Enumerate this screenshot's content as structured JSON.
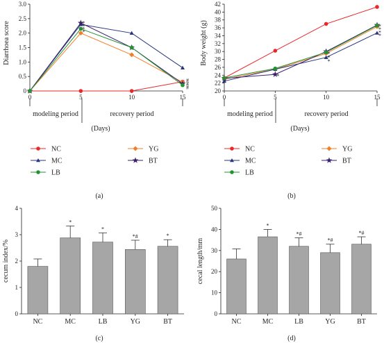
{
  "panels": {
    "a": {
      "tag": "(a)",
      "period_modeling": "modeling period",
      "period_recovery": "recovery period",
      "days": "(Days)"
    },
    "b": {
      "tag": "(b)",
      "period_modeling": "modeling period",
      "period_recovery": "recovery period",
      "days": "(Days)"
    },
    "c": {
      "tag": "(c)"
    },
    "d": {
      "tag": "(d)"
    }
  },
  "colors": {
    "NC": "#e8282b",
    "YG": "#f07f2a",
    "MC": "#26357e",
    "BT": "#3a1f6e",
    "LB": "#239233",
    "bar": "#a6a6a6"
  },
  "chart_data": [
    {
      "id": "a",
      "type": "line",
      "ylabel": "Diarrhoea score",
      "x": [
        0,
        5,
        10,
        15
      ],
      "ylim": [
        0,
        3
      ],
      "xlim": [
        0,
        15
      ],
      "yticks": [
        "0",
        "0.5",
        "1.0",
        "1.5",
        "2.0",
        "2.5",
        "3.0"
      ],
      "xticks": [
        "0",
        "5",
        "10",
        "15"
      ],
      "series": [
        {
          "name": "NC",
          "marker": "circle",
          "values": [
            0,
            0,
            0,
            0.32
          ]
        },
        {
          "name": "YG",
          "marker": "diamond",
          "values": [
            0,
            2.0,
            1.25,
            0.3
          ]
        },
        {
          "name": "MC",
          "marker": "triangle",
          "values": [
            0,
            2.3,
            2.0,
            0.8
          ]
        },
        {
          "name": "BT",
          "marker": "star",
          "values": [
            0,
            2.35,
            1.5,
            0.25
          ]
        },
        {
          "name": "LB",
          "marker": "circle",
          "values": [
            0,
            2.15,
            1.5,
            0.2
          ]
        }
      ],
      "annotations": [
        {
          "text": "*",
          "x": 5,
          "y": 2.35
        },
        {
          "text": "*",
          "x": 5,
          "y": 2.25
        },
        {
          "text": "*",
          "x": 5,
          "y": 2.15
        },
        {
          "text": "*",
          "x": 5,
          "y": 2.05
        },
        {
          "text": "#",
          "x": 15,
          "y": 0.37
        },
        {
          "text": "#",
          "x": 15,
          "y": 0.25
        },
        {
          "text": "#",
          "x": 15,
          "y": 0.13
        }
      ]
    },
    {
      "id": "b",
      "type": "line",
      "ylabel": "Body weight (g)",
      "x": [
        0,
        5,
        10,
        15
      ],
      "ylim": [
        20,
        42
      ],
      "xlim": [
        0,
        15
      ],
      "yticks": [
        "20",
        "22",
        "24",
        "26",
        "28",
        "30",
        "32",
        "34",
        "36",
        "38",
        "40",
        "42"
      ],
      "xticks": [
        "0",
        "5",
        "10",
        "15"
      ],
      "series": [
        {
          "name": "NC",
          "marker": "circle",
          "values": [
            23.3,
            30.2,
            37.0,
            41.3
          ]
        },
        {
          "name": "YG",
          "marker": "diamond",
          "values": [
            23.0,
            25.5,
            29.5,
            36.3
          ]
        },
        {
          "name": "MC",
          "marker": "triangle",
          "values": [
            22.5,
            25.5,
            28.5,
            34.7
          ]
        },
        {
          "name": "BT",
          "marker": "star",
          "values": [
            23.2,
            24.2,
            30.0,
            36.7
          ]
        },
        {
          "name": "LB",
          "marker": "circle",
          "values": [
            23.3,
            25.7,
            29.8,
            36.6
          ]
        }
      ],
      "annotations": [
        {
          "text": "*",
          "x": 5,
          "y": 23.9
        },
        {
          "text": "*",
          "x": 10,
          "y": 29.5
        },
        {
          "text": "*",
          "x": 10,
          "y": 28.5
        },
        {
          "text": "*",
          "x": 10,
          "y": 27.6
        },
        {
          "text": "*",
          "x": 15,
          "y": 36.5
        },
        {
          "text": "*",
          "x": 15,
          "y": 35.7
        },
        {
          "text": "*",
          "x": 15,
          "y": 34.9
        },
        {
          "text": "*",
          "x": 15,
          "y": 34.1
        }
      ]
    },
    {
      "id": "c",
      "type": "bar",
      "ylabel": "cecum index/%",
      "categories": [
        "NC",
        "MC",
        "LB",
        "YG",
        "BT"
      ],
      "values": [
        1.8,
        2.88,
        2.72,
        2.44,
        2.56
      ],
      "errors": [
        0.28,
        0.45,
        0.35,
        0.35,
        0.25
      ],
      "labels": [
        "",
        "*",
        "*",
        "*#",
        "*"
      ],
      "ylim": [
        0,
        4
      ],
      "yticks": [
        "0",
        "1",
        "2",
        "3",
        "4"
      ]
    },
    {
      "id": "d",
      "type": "bar",
      "ylabel": "cecal length/mm",
      "categories": [
        "NC",
        "MC",
        "LB",
        "YG",
        "BT"
      ],
      "values": [
        26.0,
        36.5,
        32.0,
        29.0,
        33.0
      ],
      "errors": [
        4.8,
        3.5,
        4.0,
        4.0,
        3.5
      ],
      "labels": [
        "",
        "*",
        "*#",
        "*#",
        "*#"
      ],
      "ylim": [
        0,
        50
      ],
      "yticks": [
        "0",
        "10",
        "20",
        "30",
        "40",
        "50"
      ]
    }
  ]
}
